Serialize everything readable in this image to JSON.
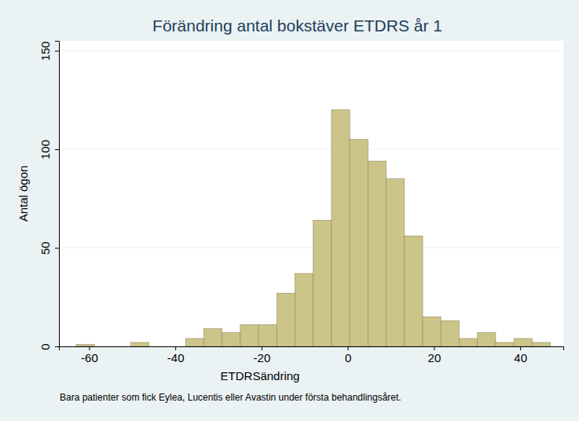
{
  "chart_data": {
    "type": "histogram",
    "title": "Förändring antal bokstäver ETDRS år 1",
    "x_label": "ETDRSändring",
    "y_label": "Antal ögon",
    "note": "Bara patienter som fick Eylea, Lucentis eller Avastin under första behandlingsåret.",
    "bins": [
      -63,
      -58.77,
      -54.54,
      -50.31,
      -46.08,
      -41.85,
      -37.62,
      -33.38,
      -29.15,
      -24.92,
      -20.69,
      -16.46,
      -12.23,
      -8,
      -3.77,
      0.46,
      4.69,
      8.92,
      13.15,
      17.38,
      21.62,
      25.85,
      30.08,
      34.31,
      38.54,
      42.77,
      47
    ],
    "values": [
      1,
      0,
      0,
      2,
      0,
      0,
      4,
      9,
      7,
      11,
      11,
      27,
      37,
      64,
      120,
      105,
      94,
      85,
      56,
      15,
      13,
      4,
      7,
      2,
      4,
      2
    ],
    "color": "#cdc48a",
    "xlim": [
      -67,
      50
    ],
    "ylim": [
      0,
      155
    ],
    "xticks": [
      -60,
      -40,
      -20,
      0,
      20,
      40
    ],
    "yticks": [
      0,
      50,
      100,
      150
    ],
    "grid": true
  }
}
